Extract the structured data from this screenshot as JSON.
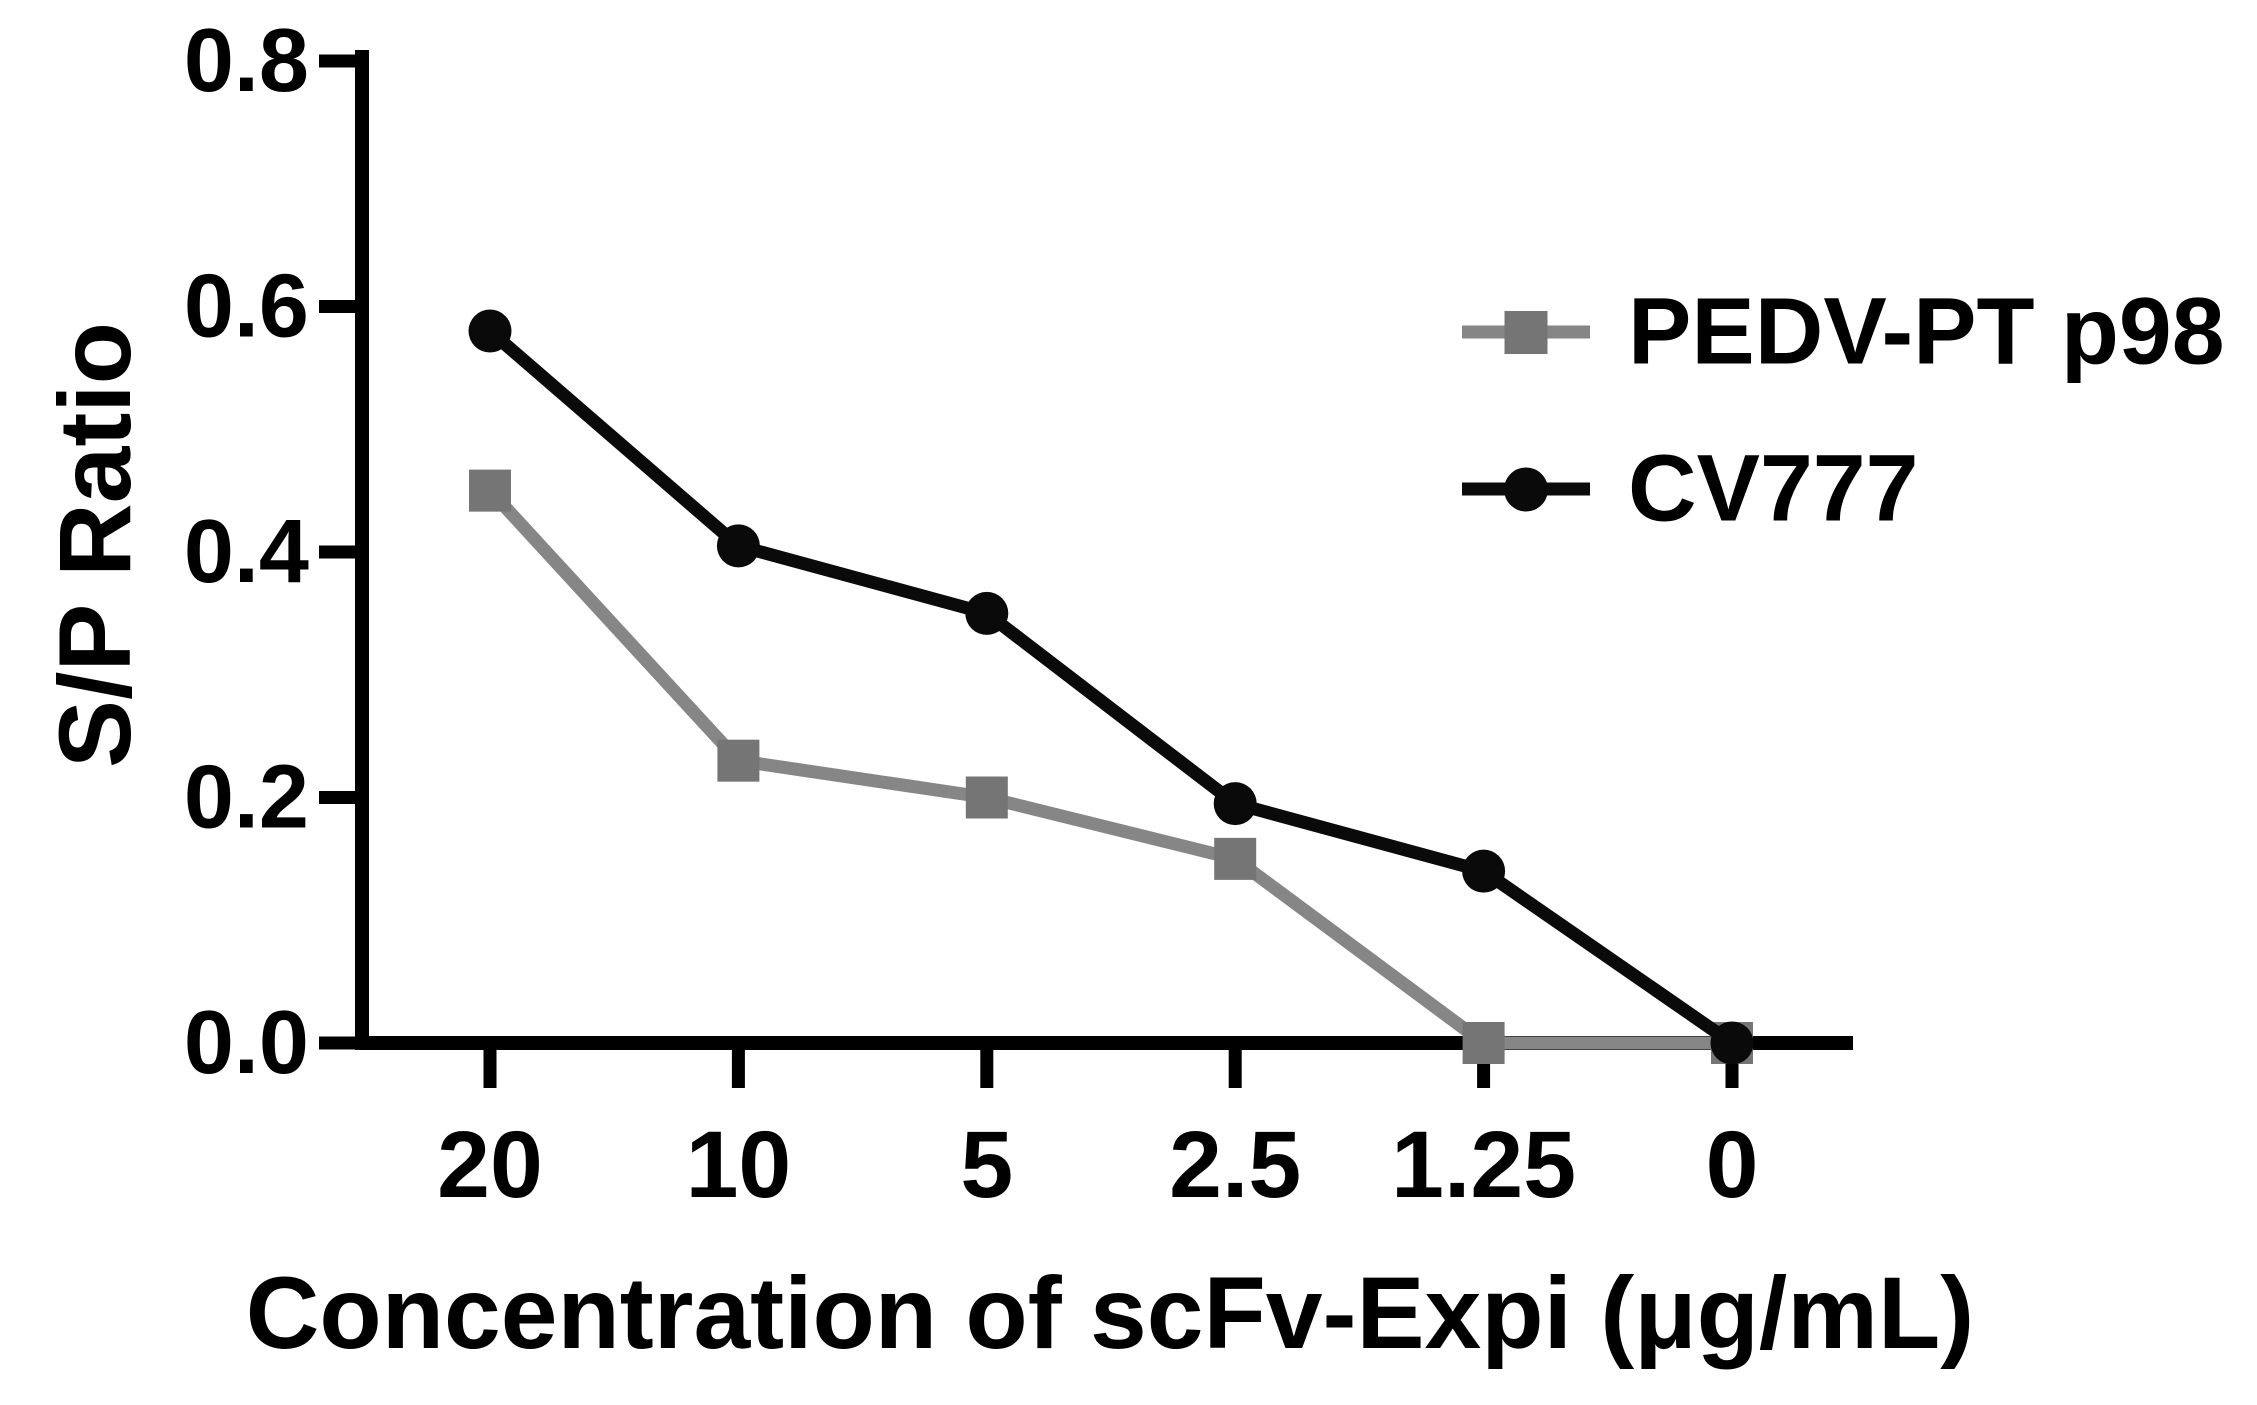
{
  "figure": {
    "background_color": "#ffffff",
    "text_color": "#000000"
  },
  "chart_data": {
    "type": "line",
    "title": "",
    "xlabel": "Concentration of scFv-Expi (μg/mL)",
    "ylabel": "S/P Ratio",
    "categories": [
      "20",
      "10",
      "5",
      "2.5",
      "1.25",
      "0"
    ],
    "y_ticks": [
      "0.0",
      "0.2",
      "0.4",
      "0.6",
      "0.8"
    ],
    "ylim": [
      0,
      0.8
    ],
    "grid": false,
    "legend_position": "upper right",
    "series": [
      {
        "name": "PEDV-PT p98",
        "marker": "square",
        "line_color": "#868686",
        "marker_color": "#757575",
        "values": [
          0.45,
          0.23,
          0.2,
          0.15,
          0,
          0
        ]
      },
      {
        "name": "CV777",
        "marker": "circle",
        "line_color": "#0a0a0a",
        "marker_color": "#0a0a0a",
        "values": [
          0.58,
          0.405,
          0.35,
          0.195,
          0.14,
          0
        ]
      }
    ]
  }
}
